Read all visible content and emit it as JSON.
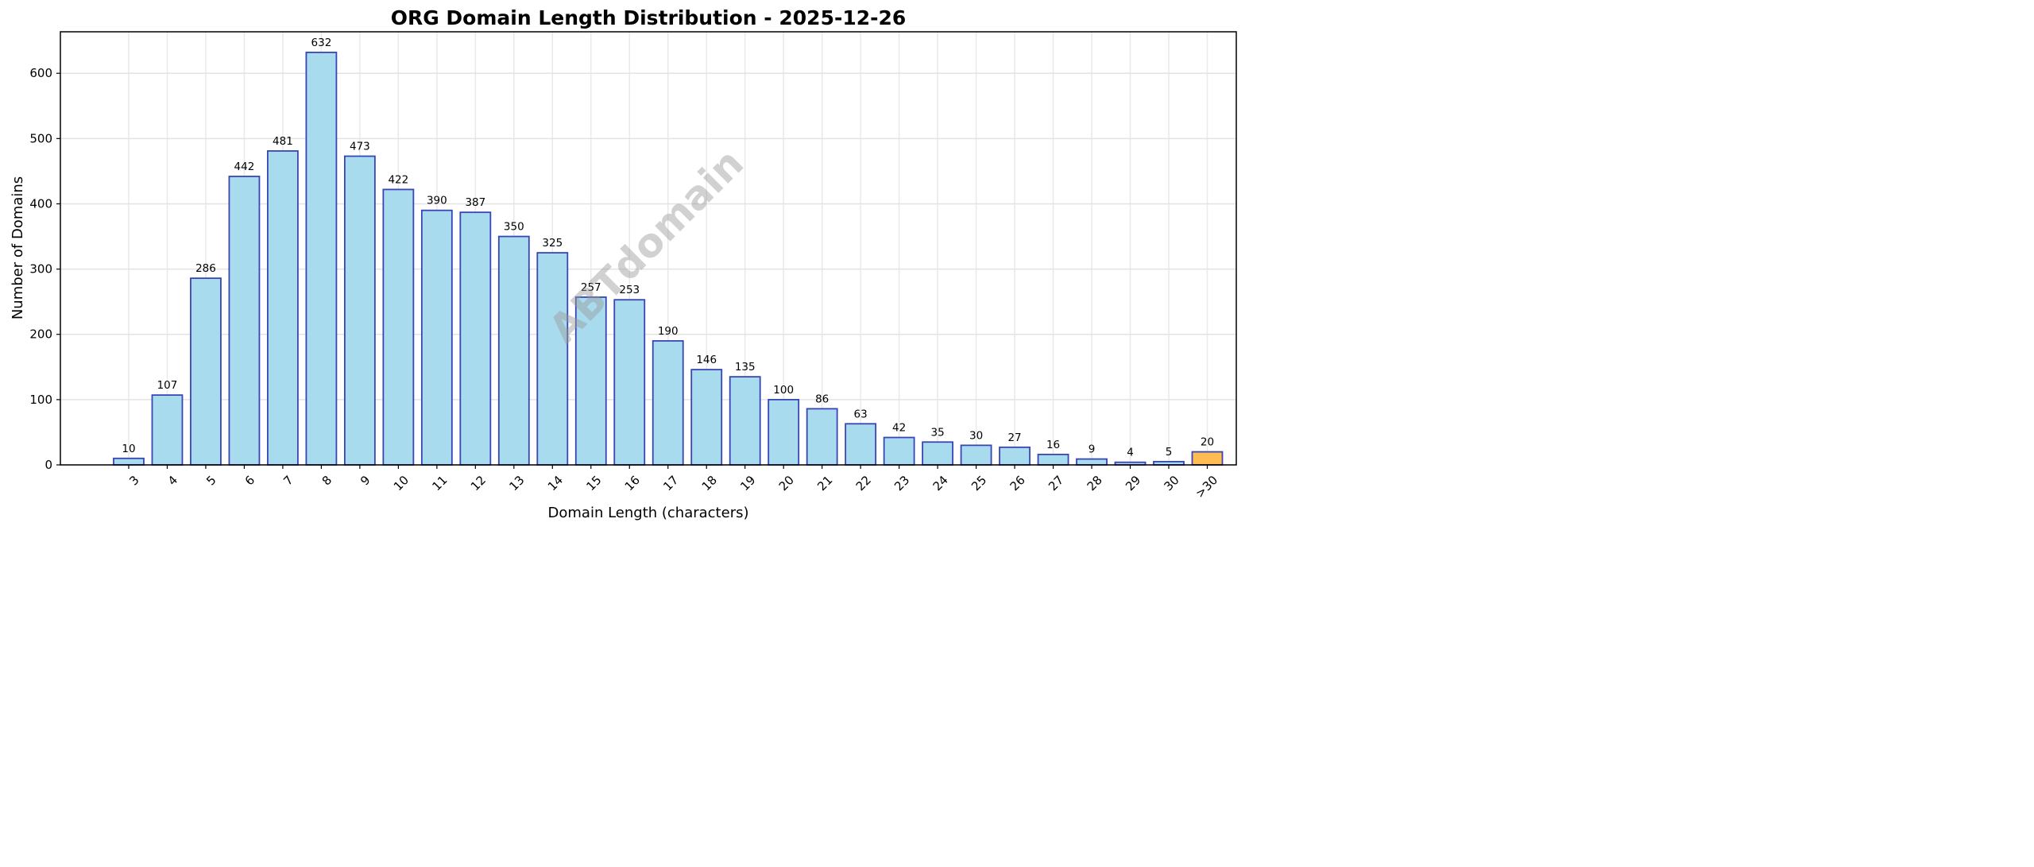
{
  "chart_data": {
    "type": "bar",
    "title": "ORG Domain Length Distribution - 2025-12-26",
    "xlabel": "Domain Length (characters)",
    "ylabel": "Number of Domains",
    "categories": [
      "3",
      "4",
      "5",
      "6",
      "7",
      "8",
      "9",
      "10",
      "11",
      "12",
      "13",
      "14",
      "15",
      "16",
      "17",
      "18",
      "19",
      "20",
      "21",
      "22",
      "23",
      "24",
      "25",
      "26",
      "27",
      "28",
      "29",
      "30",
      ">30"
    ],
    "values": [
      10,
      107,
      286,
      442,
      481,
      632,
      473,
      422,
      390,
      387,
      350,
      325,
      257,
      253,
      190,
      146,
      135,
      100,
      86,
      63,
      42,
      35,
      30,
      27,
      16,
      9,
      4,
      5,
      20
    ],
    "ylim": [
      0,
      663.6
    ],
    "yticks": [
      0,
      100,
      200,
      300,
      400,
      500,
      600
    ],
    "grid": true,
    "colors": {
      "bar": "#a8dbee",
      "bar_edge": "#3a45b5",
      "highlight_bar": "#ffbc52",
      "grid": "#e3e3e3"
    },
    "highlight_category": ">30",
    "watermark": "ABTdomain"
  }
}
